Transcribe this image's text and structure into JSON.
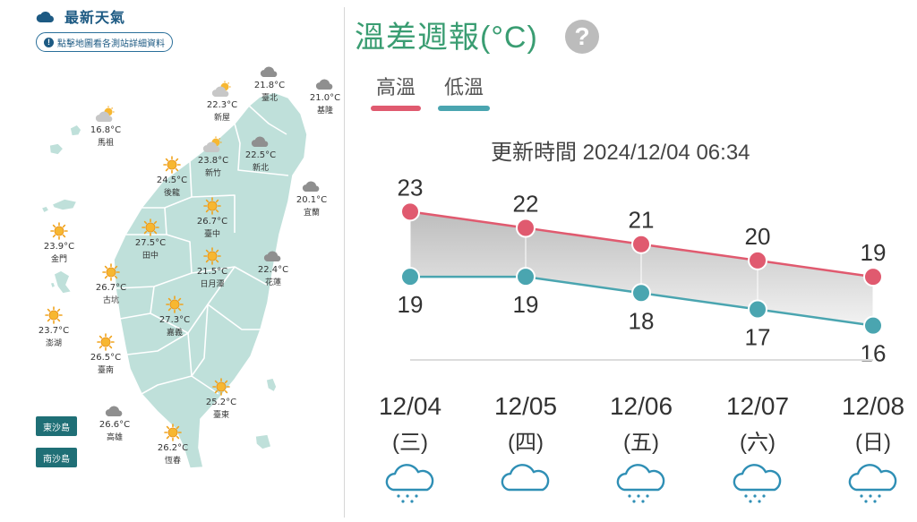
{
  "left": {
    "title": "最新天氣",
    "info_button": "點擊地圖看各測站詳細資料",
    "colors": {
      "land": "#bfe0da",
      "border": "#ffffff",
      "accent": "#1d5a83"
    },
    "stations": [
      {
        "name": "臺北",
        "temp": "21.8°C",
        "icon": "cloud-icon"
      },
      {
        "name": "基隆",
        "temp": "21.0°C",
        "icon": "cloud-icon"
      },
      {
        "name": "新屋",
        "temp": "22.3°C",
        "icon": "partly-cloudy-icon"
      },
      {
        "name": "馬祖",
        "temp": "16.8°C",
        "icon": "partly-cloudy-icon"
      },
      {
        "name": "新北",
        "temp": "22.5°C",
        "icon": "cloud-icon"
      },
      {
        "name": "新竹",
        "temp": "23.8°C",
        "icon": "partly-cloudy-icon"
      },
      {
        "name": "宜蘭",
        "temp": "20.1°C",
        "icon": "cloud-icon"
      },
      {
        "name": "後龍",
        "temp": "24.5°C",
        "icon": "sun-icon"
      },
      {
        "name": "臺中",
        "temp": "26.7°C",
        "icon": "sun-icon"
      },
      {
        "name": "金門",
        "temp": "23.9°C",
        "icon": "sun-icon"
      },
      {
        "name": "田中",
        "temp": "27.5°C",
        "icon": "sun-icon"
      },
      {
        "name": "日月潭",
        "temp": "21.5°C",
        "icon": "sun-icon"
      },
      {
        "name": "花蓮",
        "temp": "22.4°C",
        "icon": "cloud-icon"
      },
      {
        "name": "古坑",
        "temp": "26.7°C",
        "icon": "sun-icon"
      },
      {
        "name": "嘉義",
        "temp": "27.3°C",
        "icon": "sun-icon"
      },
      {
        "name": "澎湖",
        "temp": "23.7°C",
        "icon": "sun-icon"
      },
      {
        "name": "臺南",
        "temp": "26.5°C",
        "icon": "sun-icon"
      },
      {
        "name": "臺東",
        "temp": "25.2°C",
        "icon": "sun-icon"
      },
      {
        "name": "高雄",
        "temp": "26.6°C",
        "icon": "cloud-icon"
      },
      {
        "name": "恆春",
        "temp": "26.2°C",
        "icon": "sun-icon"
      }
    ],
    "islands": [
      "東沙島",
      "南沙島"
    ]
  },
  "right": {
    "title": "溫差週報(°C)",
    "legend": {
      "high": "高溫",
      "low": "低溫"
    },
    "updated": "更新時間 2024/12/04 06:34",
    "colors": {
      "high": "#e05a6f",
      "low": "#4aa5b0",
      "title": "#3a9d72"
    },
    "days": [
      {
        "date": "12/04",
        "weekday": "(三)",
        "icon": "rain-cloud-icon"
      },
      {
        "date": "12/05",
        "weekday": "(四)",
        "icon": "cloud-icon"
      },
      {
        "date": "12/06",
        "weekday": "(五)",
        "icon": "rain-cloud-icon"
      },
      {
        "date": "12/07",
        "weekday": "(六)",
        "icon": "rain-cloud-icon"
      },
      {
        "date": "12/08",
        "weekday": "(日)",
        "icon": "rain-cloud-icon"
      }
    ]
  },
  "chart_data": {
    "type": "line",
    "x": [
      "12/04",
      "12/05",
      "12/06",
      "12/07",
      "12/08"
    ],
    "series": [
      {
        "name": "高溫",
        "values": [
          23,
          22,
          21,
          20,
          19
        ]
      },
      {
        "name": "低溫",
        "values": [
          19,
          19,
          18,
          17,
          16
        ]
      }
    ],
    "ylim": [
      14,
      25
    ],
    "title": "溫差週報(°C)",
    "legend": "top-left"
  }
}
